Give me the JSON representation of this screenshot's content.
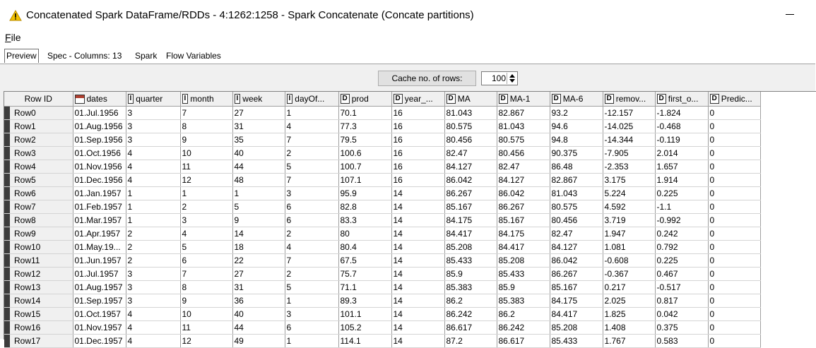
{
  "window": {
    "title": "Concatenated Spark DataFrame/RDDs - 4:1262:1258 - Spark Concatenate (Concate partitions)",
    "warning_icon": "warning-triangle-icon",
    "minimize_icon": "minimize-icon",
    "accent_color": "#e8b400"
  },
  "menu": {
    "file_rest": "ile",
    "file_mnemonic": "F"
  },
  "tabs": [
    {
      "label": "Preview"
    },
    {
      "label": "Spec - Columns: 13"
    },
    {
      "label": "Spark"
    },
    {
      "label": "Flow Variables"
    }
  ],
  "cache": {
    "button_label": "Cache no. of rows:",
    "value": "100"
  },
  "table": {
    "row_id_header": "Row ID",
    "columns": [
      {
        "type": "cal",
        "label": "dates"
      },
      {
        "type": "I",
        "label": "quarter"
      },
      {
        "type": "I",
        "label": "month"
      },
      {
        "type": "I",
        "label": "week"
      },
      {
        "type": "I",
        "label": "dayOf..."
      },
      {
        "type": "D",
        "label": "prod"
      },
      {
        "type": "D",
        "label": "year_..."
      },
      {
        "type": "D",
        "label": "MA"
      },
      {
        "type": "D",
        "label": "MA-1"
      },
      {
        "type": "D",
        "label": "MA-6"
      },
      {
        "type": "D",
        "label": "remov..."
      },
      {
        "type": "D",
        "label": "first_o..."
      },
      {
        "type": "D",
        "label": "Predic..."
      }
    ],
    "rows": [
      {
        "id": "Row0",
        "cells": [
          "01.Jul.1956",
          "3",
          "7",
          "27",
          "1",
          "70.1",
          "16",
          "81.043",
          "82.867",
          "93.2",
          "-12.157",
          "-1.824",
          "0"
        ]
      },
      {
        "id": "Row1",
        "cells": [
          "01.Aug.1956",
          "3",
          "8",
          "31",
          "4",
          "77.3",
          "16",
          "80.575",
          "81.043",
          "94.6",
          "-14.025",
          "-0.468",
          "0"
        ]
      },
      {
        "id": "Row2",
        "cells": [
          "01.Sep.1956",
          "3",
          "9",
          "35",
          "7",
          "79.5",
          "16",
          "80.456",
          "80.575",
          "94.8",
          "-14.344",
          "-0.119",
          "0"
        ]
      },
      {
        "id": "Row3",
        "cells": [
          "01.Oct.1956",
          "4",
          "10",
          "40",
          "2",
          "100.6",
          "16",
          "82.47",
          "80.456",
          "90.375",
          "-7.905",
          "2.014",
          "0"
        ]
      },
      {
        "id": "Row4",
        "cells": [
          "01.Nov.1956",
          "4",
          "11",
          "44",
          "5",
          "100.7",
          "16",
          "84.127",
          "82.47",
          "86.48",
          "-2.353",
          "1.657",
          "0"
        ]
      },
      {
        "id": "Row5",
        "cells": [
          "01.Dec.1956",
          "4",
          "12",
          "48",
          "7",
          "107.1",
          "16",
          "86.042",
          "84.127",
          "82.867",
          "3.175",
          "1.914",
          "0"
        ]
      },
      {
        "id": "Row6",
        "cells": [
          "01.Jan.1957",
          "1",
          "1",
          "1",
          "3",
          "95.9",
          "14",
          "86.267",
          "86.042",
          "81.043",
          "5.224",
          "0.225",
          "0"
        ]
      },
      {
        "id": "Row7",
        "cells": [
          "01.Feb.1957",
          "1",
          "2",
          "5",
          "6",
          "82.8",
          "14",
          "85.167",
          "86.267",
          "80.575",
          "4.592",
          "-1.1",
          "0"
        ]
      },
      {
        "id": "Row8",
        "cells": [
          "01.Mar.1957",
          "1",
          "3",
          "9",
          "6",
          "83.3",
          "14",
          "84.175",
          "85.167",
          "80.456",
          "3.719",
          "-0.992",
          "0"
        ]
      },
      {
        "id": "Row9",
        "cells": [
          "01.Apr.1957",
          "2",
          "4",
          "14",
          "2",
          "80",
          "14",
          "84.417",
          "84.175",
          "82.47",
          "1.947",
          "0.242",
          "0"
        ]
      },
      {
        "id": "Row10",
        "cells": [
          "01.May.19...",
          "2",
          "5",
          "18",
          "4",
          "80.4",
          "14",
          "85.208",
          "84.417",
          "84.127",
          "1.081",
          "0.792",
          "0"
        ]
      },
      {
        "id": "Row11",
        "cells": [
          "01.Jun.1957",
          "2",
          "6",
          "22",
          "7",
          "67.5",
          "14",
          "85.433",
          "85.208",
          "86.042",
          "-0.608",
          "0.225",
          "0"
        ]
      },
      {
        "id": "Row12",
        "cells": [
          "01.Jul.1957",
          "3",
          "7",
          "27",
          "2",
          "75.7",
          "14",
          "85.9",
          "85.433",
          "86.267",
          "-0.367",
          "0.467",
          "0"
        ]
      },
      {
        "id": "Row13",
        "cells": [
          "01.Aug.1957",
          "3",
          "8",
          "31",
          "5",
          "71.1",
          "14",
          "85.383",
          "85.9",
          "85.167",
          "0.217",
          "-0.517",
          "0"
        ]
      },
      {
        "id": "Row14",
        "cells": [
          "01.Sep.1957",
          "3",
          "9",
          "36",
          "1",
          "89.3",
          "14",
          "86.2",
          "85.383",
          "84.175",
          "2.025",
          "0.817",
          "0"
        ]
      },
      {
        "id": "Row15",
        "cells": [
          "01.Oct.1957",
          "4",
          "10",
          "40",
          "3",
          "101.1",
          "14",
          "86.242",
          "86.2",
          "84.417",
          "1.825",
          "0.042",
          "0"
        ]
      },
      {
        "id": "Row16",
        "cells": [
          "01.Nov.1957",
          "4",
          "11",
          "44",
          "6",
          "105.2",
          "14",
          "86.617",
          "86.242",
          "85.208",
          "1.408",
          "0.375",
          "0"
        ]
      },
      {
        "id": "Row17",
        "cells": [
          "01.Dec.1957",
          "4",
          "12",
          "49",
          "1",
          "114.1",
          "14",
          "87.2",
          "86.617",
          "85.433",
          "1.767",
          "0.583",
          "0"
        ]
      }
    ]
  }
}
